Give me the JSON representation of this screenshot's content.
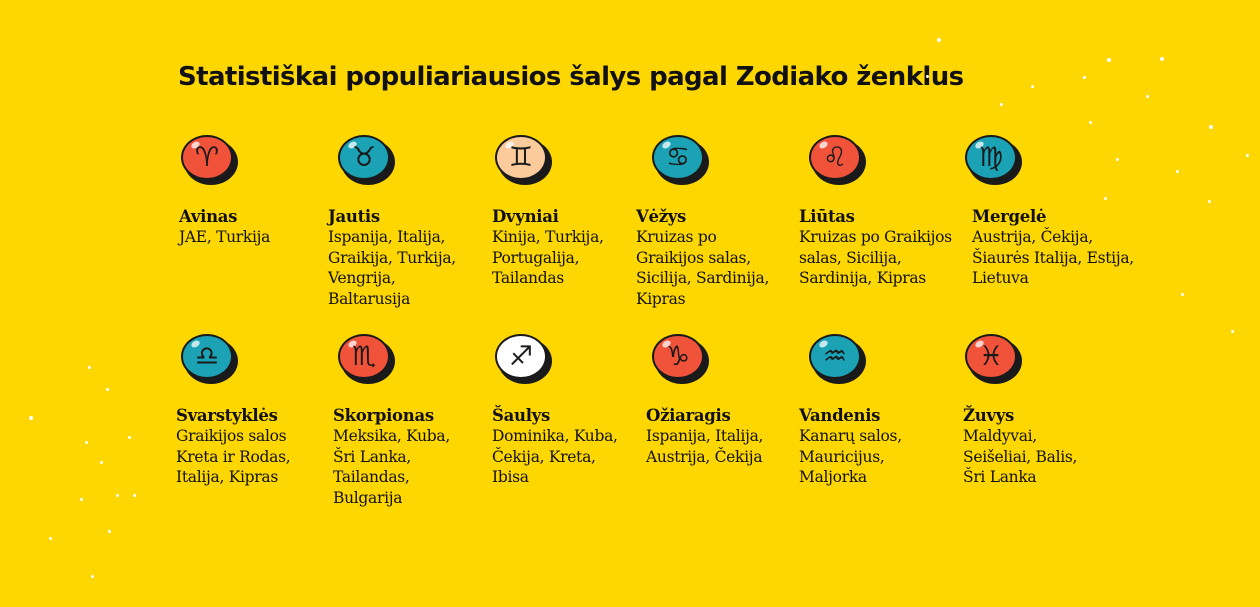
{
  "title": "Statistiškai populiariausios šalys pagal Zodiako ženklus",
  "colors": {
    "background": "#FFD700",
    "red": "#F1523A",
    "teal": "#1BA3B5",
    "peach": "#FBCB9C",
    "white": "#FFFFFF"
  },
  "signs": [
    {
      "name": "Avinas",
      "symbol": "♈",
      "icon": "aries-icon",
      "color": "#F1523A",
      "countries": "JAE, Turkija"
    },
    {
      "name": "Jautis",
      "symbol": "♉",
      "icon": "taurus-icon",
      "color": "#1BA3B5",
      "countries": "Ispanija, Italija,\nGraikija, Turkija,\nVengrija,\nBaltarusija"
    },
    {
      "name": "Dvyniai",
      "symbol": "♊",
      "icon": "gemini-icon",
      "color": "#FBCB9C",
      "countries": "Kinija, Turkija,\nPortugalija,\nTailandas"
    },
    {
      "name": "Vėžys",
      "symbol": "♋",
      "icon": "cancer-icon",
      "color": "#1BA3B5",
      "countries": "Kruizas po\nGraikijos salas,\nSicilija, Sardinija,\nKipras"
    },
    {
      "name": "Liūtas",
      "symbol": "♌",
      "icon": "leo-icon",
      "color": "#F1523A",
      "countries": "Kruizas po Graikijos\nsalas, Sicilija,\nSardinija, Kipras"
    },
    {
      "name": "Mergelė",
      "symbol": "♍",
      "icon": "virgo-icon",
      "color": "#1BA3B5",
      "countries": "Austrija, Čekija,\nŠiaurės Italija, Estija,\nLietuva"
    },
    {
      "name": "Svarstyklės",
      "symbol": "♎",
      "icon": "libra-icon",
      "color": "#1BA3B5",
      "countries": "Graikijos salos\nKreta ir Rodas,\nItalija, Kipras"
    },
    {
      "name": "Skorpionas",
      "symbol": "♏",
      "icon": "scorpio-icon",
      "color": "#F1523A",
      "countries": "Meksika, Kuba,\nŠri Lanka,\nTailandas,\nBulgarija"
    },
    {
      "name": "Šaulys",
      "symbol": "♐",
      "icon": "sagittarius-icon",
      "color": "#FFFFFF",
      "countries": "Dominika, Kuba,\nČekija, Kreta,\nIbisa"
    },
    {
      "name": "Ožiaragis",
      "symbol": "♑",
      "icon": "capricorn-icon",
      "color": "#F1523A",
      "countries": "Ispanija, Italija,\nAustrija, Čekija"
    },
    {
      "name": "Vandenis",
      "symbol": "♒",
      "icon": "aquarius-icon",
      "color": "#1BA3B5",
      "countries": "Kanarų salos,\nMauricijus,\nMaljorka"
    },
    {
      "name": "Žuvys",
      "symbol": "♓",
      "icon": "pisces-icon",
      "color": "#F1523A",
      "countries": "Maldyvai,\nSeišeliai, Balis,\nŠri Lanka"
    }
  ]
}
